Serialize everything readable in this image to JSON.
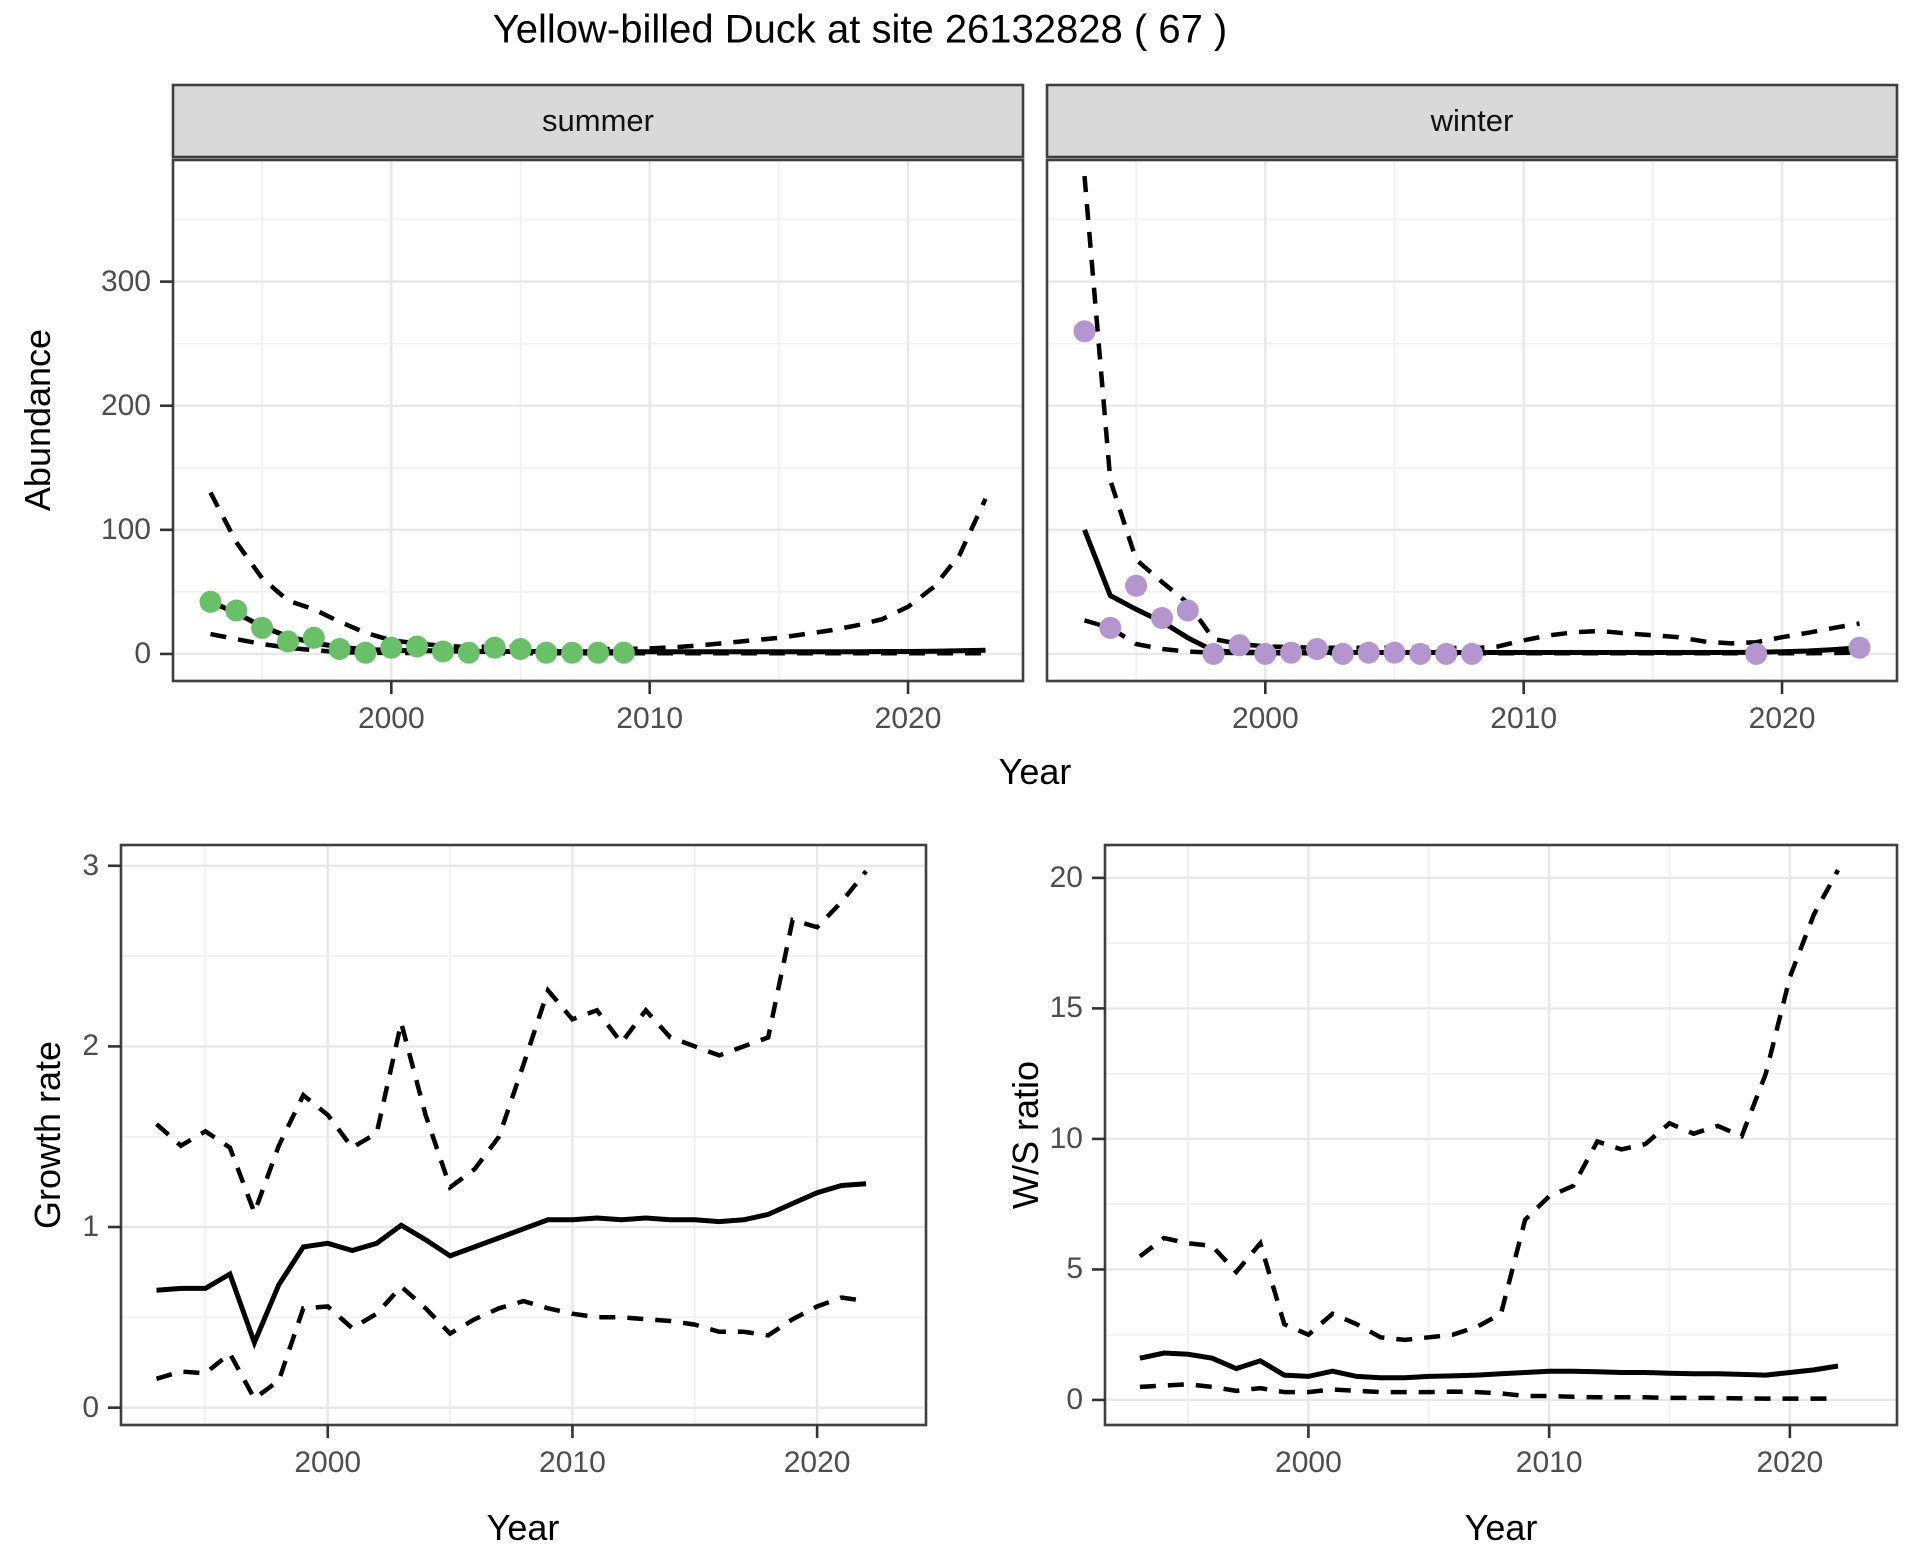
{
  "title": "Yellow-billed Duck at site 26132828 ( 67 )",
  "colors": {
    "summer_point": "#6abf69",
    "winter_point": "#b495cd",
    "fit_line": "#000000",
    "ci_line": "#000000",
    "strip_bg": "#d9d9d9",
    "panel_border": "#3f3f3f",
    "grid_major": "#e8e8e8",
    "grid_minor": "#f1f1f1",
    "tick_label": "#4d4d4d"
  },
  "labels": {
    "facet_summer": "summer",
    "facet_winter": "winter",
    "abundance_y": "Abundance",
    "abundance_x": "Year",
    "growth_y": "Growth rate",
    "growth_x": "Year",
    "ws_y": "W/S ratio",
    "ws_x": "Year"
  },
  "chart_data": [
    {
      "panel": "abundance-summer",
      "type": "scatter",
      "facet_label": "summer",
      "xlabel": "Year",
      "ylabel": "Abundance",
      "xlim": [
        1991.55,
        2024.45
      ],
      "ylim": [
        -21.8,
        398
      ],
      "x_ticks": [
        2000,
        2010,
        2020
      ],
      "x_minor": [
        1995,
        2005,
        2015
      ],
      "y_ticks": [
        0,
        100,
        200,
        300
      ],
      "y_minor": [
        50,
        150,
        250,
        350
      ],
      "show_y_labels": true,
      "series": [
        {
          "name": "lower_ci",
          "kind": "line",
          "style": "dashed",
          "years": [
            1993,
            1994,
            1995,
            1996,
            1997,
            1998,
            1999,
            2000,
            2001,
            2002,
            2003,
            2004,
            2005,
            2006,
            2007,
            2008,
            2009,
            2010,
            2011,
            2012,
            2013,
            2014,
            2015,
            2016,
            2017,
            2018,
            2019,
            2020,
            2021,
            2022,
            2023
          ],
          "values": [
            16,
            12,
            8,
            5,
            3,
            1.5,
            1,
            0.8,
            0.8,
            0.5,
            0.5,
            0.5,
            0.5,
            0.5,
            0.5,
            0.5,
            0.5,
            0.5,
            0.5,
            0.5,
            0.5,
            0.5,
            0.5,
            0.5,
            0.5,
            0.5,
            0.5,
            0.5,
            0.5,
            0.5,
            0.5
          ]
        },
        {
          "name": "upper_ci",
          "kind": "line",
          "style": "dashed",
          "years": [
            1993,
            1994,
            1995,
            1996,
            1997,
            1998,
            1999,
            2000,
            2001,
            2002,
            2003,
            2004,
            2005,
            2006,
            2007,
            2008,
            2009,
            2010,
            2011,
            2012,
            2013,
            2014,
            2015,
            2016,
            2017,
            2018,
            2019,
            2020,
            2021,
            2022,
            2023
          ],
          "values": [
            130,
            90,
            61,
            43,
            36,
            26,
            17,
            11,
            8.5,
            6.5,
            5.5,
            6,
            5.5,
            4.5,
            4,
            4,
            4,
            4.5,
            5.5,
            7,
            9,
            11,
            13,
            16,
            19,
            23,
            28,
            38,
            54,
            80,
            125
          ]
        },
        {
          "name": "fit",
          "kind": "line",
          "style": "solid",
          "years": [
            1993,
            1994,
            1995,
            1996,
            1997,
            1998,
            1999,
            2000,
            2001,
            2002,
            2003,
            2004,
            2005,
            2006,
            2007,
            2008,
            2009,
            2010,
            2011,
            2012,
            2013,
            2014,
            2015,
            2016,
            2017,
            2018,
            2019,
            2020,
            2021,
            2022,
            2023
          ],
          "values": [
            42,
            33,
            22,
            14,
            9,
            5.5,
            3.5,
            3,
            2.5,
            2.5,
            2,
            2,
            2,
            2,
            1.8,
            1.8,
            1.8,
            1.8,
            1.8,
            1.8,
            1.8,
            1.8,
            1.8,
            1.8,
            1.8,
            1.8,
            2,
            2,
            2.2,
            2.6,
            3
          ]
        },
        {
          "name": "observed",
          "kind": "points",
          "color": "#6abf69",
          "years": [
            1993,
            1994,
            1995,
            1996,
            1997,
            1998,
            1999,
            2000,
            2001,
            2002,
            2003,
            2004,
            2005,
            2006,
            2007,
            2008,
            2009
          ],
          "values": [
            42,
            35,
            21,
            10,
            13,
            4,
            1,
            5,
            6,
            2,
            1,
            5,
            4,
            1,
            1,
            1,
            1
          ]
        }
      ]
    },
    {
      "panel": "abundance-winter",
      "type": "scatter",
      "facet_label": "winter",
      "xlabel": "Year",
      "ylabel": "Abundance",
      "xlim": [
        1991.55,
        2024.45
      ],
      "ylim": [
        -21.8,
        398
      ],
      "x_ticks": [
        2000,
        2010,
        2020
      ],
      "x_minor": [
        1995,
        2005,
        2015
      ],
      "y_ticks": [
        0,
        100,
        200,
        300
      ],
      "y_minor": [
        50,
        150,
        250,
        350
      ],
      "show_y_labels": false,
      "series": [
        {
          "name": "lower_ci",
          "kind": "line",
          "style": "dashed",
          "years": [
            1993,
            1994,
            1995,
            1996,
            1997,
            1998,
            1999,
            2000,
            2001,
            2002,
            2003,
            2004,
            2005,
            2006,
            2007,
            2008,
            2009,
            2010,
            2011,
            2012,
            2013,
            2014,
            2015,
            2016,
            2017,
            2018,
            2019,
            2020,
            2021,
            2022,
            2023
          ],
          "values": [
            27,
            21,
            8,
            4,
            2,
            1,
            0.8,
            0.6,
            0.6,
            0.5,
            0.5,
            0.5,
            0.5,
            0.5,
            0.5,
            0.5,
            0.5,
            0.5,
            0.5,
            0.5,
            0.5,
            0.5,
            0.5,
            0.5,
            0.5,
            0.5,
            0.5,
            0.5,
            0.6,
            0.8,
            1
          ]
        },
        {
          "name": "upper_ci",
          "kind": "line",
          "style": "dashed",
          "years": [
            1993,
            1994,
            1995,
            1996,
            1997,
            1998,
            1999,
            2000,
            2001,
            2002,
            2003,
            2004,
            2005,
            2006,
            2007,
            2008,
            2009,
            2010,
            2011,
            2012,
            2013,
            2014,
            2015,
            2016,
            2017,
            2018,
            2019,
            2020,
            2021,
            2022,
            2023
          ],
          "values": [
            385,
            140,
            76,
            58,
            41,
            12,
            8,
            6,
            5.5,
            5,
            5,
            5,
            5,
            5,
            5,
            4.5,
            6,
            11,
            15,
            17.5,
            18.5,
            16.5,
            15,
            13.5,
            10,
            8.5,
            9.5,
            13.5,
            17,
            21,
            24.5
          ]
        },
        {
          "name": "fit",
          "kind": "line",
          "style": "solid",
          "years": [
            1993,
            1994,
            1995,
            1996,
            1997,
            1998,
            1999,
            2000,
            2001,
            2002,
            2003,
            2004,
            2005,
            2006,
            2007,
            2008,
            2009,
            2010,
            2011,
            2012,
            2013,
            2014,
            2015,
            2016,
            2017,
            2018,
            2019,
            2020,
            2021,
            2022,
            2023
          ],
          "values": [
            100,
            47,
            36,
            26,
            13,
            2.5,
            1.5,
            1.3,
            1.3,
            1.2,
            1.2,
            1.2,
            1.2,
            1.2,
            1.2,
            1.2,
            1.2,
            1.2,
            1.2,
            1.2,
            1.2,
            1.2,
            1.2,
            1.2,
            1.2,
            1.2,
            1.4,
            1.8,
            2.4,
            3.5,
            5
          ]
        },
        {
          "name": "observed",
          "kind": "points",
          "color": "#b495cd",
          "years": [
            1993,
            1994,
            1995,
            1996,
            1997,
            1998,
            1999,
            2000,
            2001,
            2002,
            2003,
            2004,
            2005,
            2006,
            2007,
            2008,
            2019,
            2023
          ],
          "values": [
            260,
            21,
            55,
            29,
            35,
            0,
            7,
            0,
            1,
            4,
            0,
            1,
            1,
            0,
            0,
            0,
            0,
            5
          ]
        }
      ]
    },
    {
      "panel": "growth-rate",
      "type": "line",
      "facet_label": "",
      "xlabel": "Year",
      "ylabel": "Growth rate",
      "xlim": [
        1991.55,
        2024.45
      ],
      "ylim": [
        -0.096,
        3.115
      ],
      "x_ticks": [
        2000,
        2010,
        2020
      ],
      "x_minor": [
        1995,
        2005,
        2015
      ],
      "y_ticks": [
        0,
        1,
        2,
        3
      ],
      "y_minor": [
        0.5,
        1.5,
        2.5
      ],
      "show_y_labels": true,
      "series": [
        {
          "name": "lower_ci",
          "kind": "line",
          "style": "dashed",
          "years": [
            1993,
            1994,
            1995,
            1996,
            1997,
            1998,
            1999,
            2000,
            2001,
            2002,
            2003,
            2004,
            2005,
            2006,
            2007,
            2008,
            2009,
            2010,
            2011,
            2012,
            2013,
            2014,
            2015,
            2016,
            2017,
            2018,
            2019,
            2020,
            2021,
            2022
          ],
          "values": [
            0.16,
            0.2,
            0.19,
            0.3,
            0.05,
            0.15,
            0.55,
            0.56,
            0.44,
            0.52,
            0.67,
            0.55,
            0.41,
            0.49,
            0.55,
            0.59,
            0.55,
            0.52,
            0.5,
            0.5,
            0.49,
            0.48,
            0.46,
            0.42,
            0.42,
            0.4,
            0.49,
            0.56,
            0.61,
            0.59
          ]
        },
        {
          "name": "upper_ci",
          "kind": "line",
          "style": "dashed",
          "years": [
            1993,
            1994,
            1995,
            1996,
            1997,
            1998,
            1999,
            2000,
            2001,
            2002,
            2003,
            2004,
            2005,
            2006,
            2007,
            2008,
            2009,
            2010,
            2011,
            2012,
            2013,
            2014,
            2015,
            2016,
            2017,
            2018,
            2019,
            2020,
            2021,
            2022
          ],
          "values": [
            1.57,
            1.45,
            1.53,
            1.44,
            1.08,
            1.45,
            1.73,
            1.62,
            1.44,
            1.52,
            2.13,
            1.62,
            1.22,
            1.32,
            1.5,
            1.9,
            2.31,
            2.15,
            2.2,
            2.02,
            2.2,
            2.05,
            2.0,
            1.95,
            2.0,
            2.05,
            2.7,
            2.66,
            2.8,
            2.97
          ]
        },
        {
          "name": "fit",
          "kind": "line",
          "style": "solid",
          "years": [
            1993,
            1994,
            1995,
            1996,
            1997,
            1998,
            1999,
            2000,
            2001,
            2002,
            2003,
            2004,
            2005,
            2006,
            2007,
            2008,
            2009,
            2010,
            2011,
            2012,
            2013,
            2014,
            2015,
            2016,
            2017,
            2018,
            2019,
            2020,
            2021,
            2022
          ],
          "values": [
            0.65,
            0.66,
            0.66,
            0.74,
            0.36,
            0.68,
            0.89,
            0.91,
            0.87,
            0.91,
            1.01,
            0.93,
            0.84,
            0.89,
            0.94,
            0.99,
            1.04,
            1.04,
            1.05,
            1.04,
            1.05,
            1.04,
            1.04,
            1.03,
            1.04,
            1.07,
            1.13,
            1.19,
            1.23,
            1.24
          ]
        }
      ]
    },
    {
      "panel": "ws-ratio",
      "type": "line",
      "facet_label": "",
      "xlabel": "Year",
      "ylabel": "W/S ratio",
      "xlim": [
        1991.55,
        2024.45
      ],
      "ylim": [
        -0.96,
        21.26
      ],
      "x_ticks": [
        2000,
        2010,
        2020
      ],
      "x_minor": [
        1995,
        2005,
        2015
      ],
      "y_ticks": [
        0,
        5,
        10,
        15,
        20
      ],
      "y_minor": [
        2.5,
        7.5,
        12.5,
        17.5
      ],
      "show_y_labels": true,
      "series": [
        {
          "name": "lower_ci",
          "kind": "line",
          "style": "dashed",
          "years": [
            1993,
            1994,
            1995,
            1996,
            1997,
            1998,
            1999,
            2000,
            2001,
            2002,
            2003,
            2004,
            2005,
            2006,
            2007,
            2008,
            2009,
            2010,
            2011,
            2012,
            2013,
            2014,
            2015,
            2016,
            2017,
            2018,
            2019,
            2020,
            2021,
            2022
          ],
          "values": [
            0.5,
            0.55,
            0.6,
            0.5,
            0.35,
            0.45,
            0.3,
            0.3,
            0.4,
            0.35,
            0.3,
            0.3,
            0.3,
            0.32,
            0.3,
            0.25,
            0.15,
            0.15,
            0.12,
            0.1,
            0.1,
            0.1,
            0.08,
            0.08,
            0.08,
            0.06,
            0.05,
            0.05,
            0.05,
            0.05
          ]
        },
        {
          "name": "upper_ci",
          "kind": "line",
          "style": "dashed",
          "years": [
            1993,
            1994,
            1995,
            1996,
            1997,
            1998,
            1999,
            2000,
            2001,
            2002,
            2003,
            2004,
            2005,
            2006,
            2007,
            2008,
            2009,
            2010,
            2011,
            2012,
            2013,
            2014,
            2015,
            2016,
            2017,
            2018,
            2019,
            2020,
            2021,
            2022
          ],
          "values": [
            5.5,
            6.2,
            6.0,
            5.9,
            4.9,
            6.0,
            2.9,
            2.5,
            3.3,
            2.9,
            2.4,
            2.3,
            2.4,
            2.5,
            2.8,
            3.3,
            6.9,
            7.8,
            8.2,
            9.9,
            9.6,
            9.8,
            10.6,
            10.2,
            10.5,
            10.1,
            12.5,
            16.2,
            18.6,
            20.3
          ]
        },
        {
          "name": "fit",
          "kind": "line",
          "style": "solid",
          "years": [
            1993,
            1994,
            1995,
            1996,
            1997,
            1998,
            1999,
            2000,
            2001,
            2002,
            2003,
            2004,
            2005,
            2006,
            2007,
            2008,
            2009,
            2010,
            2011,
            2012,
            2013,
            2014,
            2015,
            2016,
            2017,
            2018,
            2019,
            2020,
            2021,
            2022
          ],
          "values": [
            1.6,
            1.8,
            1.75,
            1.6,
            1.2,
            1.5,
            0.95,
            0.9,
            1.1,
            0.9,
            0.85,
            0.85,
            0.9,
            0.92,
            0.95,
            1.0,
            1.05,
            1.1,
            1.1,
            1.08,
            1.05,
            1.05,
            1.02,
            1.0,
            1.0,
            0.98,
            0.95,
            1.05,
            1.15,
            1.3
          ]
        }
      ]
    }
  ]
}
